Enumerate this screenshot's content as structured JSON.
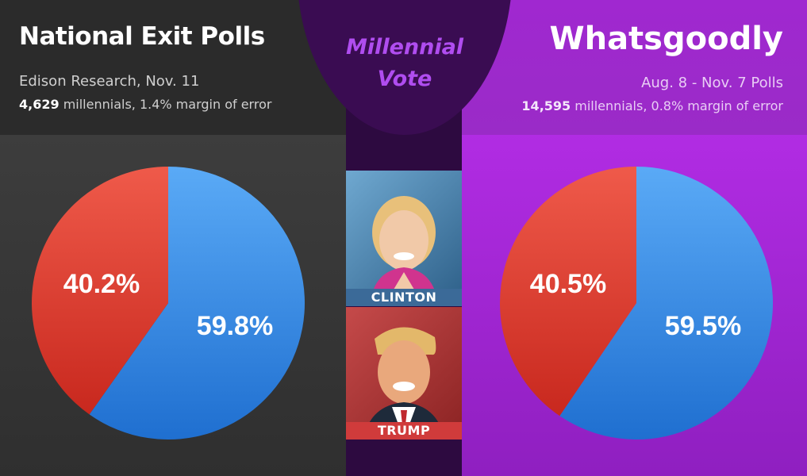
{
  "left": {
    "title": "National Exit Polls",
    "source": "Edison Research, Nov. 11",
    "sample_count": "4,629",
    "sample_text": " millennials, 1.4% margin of error"
  },
  "center": {
    "title_line1": "Millennial",
    "title_line2": "Vote",
    "clinton_label": "CLINTON",
    "trump_label": "TRUMP"
  },
  "right": {
    "title": "Whatsgoodly",
    "source": "Aug. 8 - Nov. 7 Polls",
    "sample_count": "14,595",
    "sample_text": " millennials, 0.8% margin of error"
  },
  "colors": {
    "blue": "#2f86e0",
    "red": "#e0402e"
  },
  "chart_data": [
    {
      "type": "pie",
      "values": [
        59.8,
        40.2
      ],
      "labels": [
        "59.8%",
        "40.2%"
      ],
      "colors": [
        "#2f86e0",
        "#e0402e"
      ]
    },
    {
      "type": "pie",
      "values": [
        59.5,
        40.5
      ],
      "labels": [
        "59.5%",
        "40.5%"
      ],
      "colors": [
        "#2f86e0",
        "#e0402e"
      ]
    }
  ]
}
